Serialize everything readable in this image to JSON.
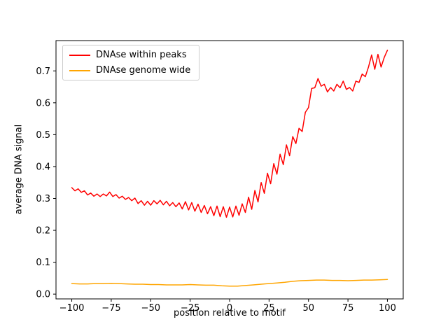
{
  "figure": {
    "background": "#ffffff"
  },
  "chart_data": {
    "type": "line",
    "title": "",
    "xlabel": "position relative to motif",
    "ylabel": "average DNA signal",
    "xlim": [
      -110,
      110
    ],
    "ylim": [
      -0.015,
      0.795
    ],
    "xticks": [
      -100,
      -75,
      -50,
      -25,
      0,
      25,
      50,
      75,
      100
    ],
    "xtick_labels": [
      "−100",
      "−75",
      "−50",
      "−25",
      "0",
      "25",
      "50",
      "75",
      "100"
    ],
    "yticks": [
      0.0,
      0.1,
      0.2,
      0.3,
      0.4,
      0.5,
      0.6,
      0.7
    ],
    "ytick_labels": [
      "0.0",
      "0.1",
      "0.2",
      "0.3",
      "0.4",
      "0.5",
      "0.6",
      "0.7"
    ],
    "grid": false,
    "legend_position": "upper left",
    "series": [
      {
        "name": "DNAse within peaks",
        "color": "#ff0000",
        "x": [
          -100,
          -98,
          -96,
          -94,
          -92,
          -90,
          -88,
          -86,
          -84,
          -82,
          -80,
          -78,
          -76,
          -74,
          -72,
          -70,
          -68,
          -66,
          -64,
          -62,
          -60,
          -58,
          -56,
          -54,
          -52,
          -50,
          -48,
          -46,
          -44,
          -42,
          -40,
          -38,
          -36,
          -34,
          -32,
          -30,
          -28,
          -26,
          -24,
          -22,
          -20,
          -18,
          -16,
          -14,
          -12,
          -10,
          -8,
          -6,
          -4,
          -2,
          0,
          2,
          4,
          6,
          8,
          10,
          12,
          14,
          16,
          18,
          20,
          22,
          24,
          26,
          28,
          30,
          32,
          34,
          36,
          38,
          40,
          42,
          44,
          46,
          48,
          50,
          52,
          54,
          56,
          58,
          60,
          62,
          64,
          66,
          68,
          70,
          72,
          74,
          76,
          78,
          80,
          82,
          84,
          86,
          88,
          90,
          92,
          94,
          96,
          98,
          100
        ],
        "y": [
          0.334,
          0.324,
          0.33,
          0.319,
          0.324,
          0.311,
          0.317,
          0.307,
          0.314,
          0.306,
          0.314,
          0.308,
          0.32,
          0.306,
          0.312,
          0.301,
          0.307,
          0.297,
          0.303,
          0.293,
          0.301,
          0.284,
          0.293,
          0.279,
          0.291,
          0.279,
          0.293,
          0.283,
          0.294,
          0.28,
          0.291,
          0.277,
          0.287,
          0.274,
          0.286,
          0.267,
          0.29,
          0.264,
          0.287,
          0.26,
          0.282,
          0.256,
          0.278,
          0.252,
          0.274,
          0.246,
          0.276,
          0.243,
          0.274,
          0.241,
          0.273,
          0.242,
          0.276,
          0.247,
          0.283,
          0.256,
          0.304,
          0.266,
          0.325,
          0.289,
          0.35,
          0.316,
          0.379,
          0.346,
          0.409,
          0.376,
          0.439,
          0.406,
          0.468,
          0.434,
          0.494,
          0.472,
          0.52,
          0.51,
          0.57,
          0.585,
          0.645,
          0.647,
          0.676,
          0.652,
          0.658,
          0.634,
          0.648,
          0.637,
          0.658,
          0.647,
          0.668,
          0.642,
          0.648,
          0.637,
          0.668,
          0.664,
          0.69,
          0.682,
          0.712,
          0.75,
          0.705,
          0.752,
          0.712,
          0.742,
          0.765
        ]
      },
      {
        "name": "DNAse genome wide",
        "color": "#ffa500",
        "x": [
          -100,
          -95,
          -90,
          -85,
          -80,
          -75,
          -70,
          -65,
          -60,
          -55,
          -50,
          -45,
          -40,
          -35,
          -30,
          -25,
          -20,
          -15,
          -10,
          -5,
          0,
          5,
          10,
          15,
          20,
          25,
          30,
          35,
          40,
          45,
          50,
          55,
          60,
          65,
          70,
          75,
          80,
          85,
          90,
          95,
          100
        ],
        "y": [
          0.033,
          0.032,
          0.032,
          0.033,
          0.033,
          0.034,
          0.033,
          0.032,
          0.031,
          0.031,
          0.03,
          0.03,
          0.029,
          0.029,
          0.029,
          0.03,
          0.029,
          0.028,
          0.028,
          0.026,
          0.025,
          0.025,
          0.027,
          0.029,
          0.031,
          0.033,
          0.035,
          0.037,
          0.04,
          0.042,
          0.043,
          0.044,
          0.044,
          0.043,
          0.043,
          0.042,
          0.043,
          0.044,
          0.044,
          0.045,
          0.046
        ]
      }
    ]
  }
}
